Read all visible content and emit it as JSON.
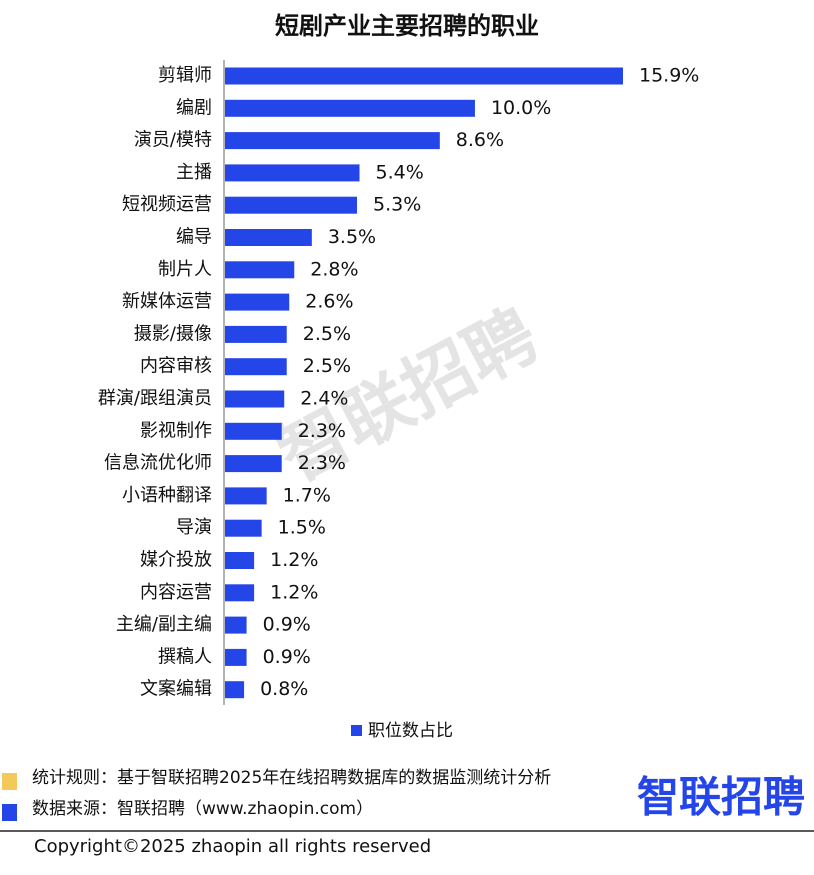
{
  "chart_data": {
    "type": "bar",
    "orientation": "horizontal",
    "title": "短剧产业主要招聘的职业",
    "categories": [
      "剪辑师",
      "编剧",
      "演员/模特",
      "主播",
      "短视频运营",
      "编导",
      "制片人",
      "新媒体运营",
      "摄影/摄像",
      "内容审核",
      "群演/跟组演员",
      "影视制作",
      "信息流优化师",
      "小语种翻译",
      "导演",
      "媒介投放",
      "内容运营",
      "主编/副主编",
      "撰稿人",
      "文案编辑"
    ],
    "series": [
      {
        "name": "职位数占比",
        "color": "#2445e8",
        "values": [
          15.9,
          10.0,
          8.6,
          5.4,
          5.3,
          3.5,
          2.8,
          2.6,
          2.5,
          2.5,
          2.4,
          2.3,
          2.3,
          1.7,
          1.5,
          1.2,
          1.2,
          0.9,
          0.9,
          0.8
        ],
        "value_labels": [
          "15.9%",
          "10.0%",
          "8.6%",
          "5.4%",
          "5.3%",
          "3.5%",
          "2.8%",
          "2.6%",
          "2.5%",
          "2.5%",
          "2.4%",
          "2.3%",
          "2.3%",
          "1.7%",
          "1.5%",
          "1.2%",
          "1.2%",
          "0.9%",
          "0.9%",
          "0.8%"
        ]
      }
    ],
    "watermark": "智联招聘",
    "notes": [
      {
        "text": "统计规则：基于智联招聘2025年在线招聘数据库的数据监测统计分析",
        "color": "#f5c85a"
      },
      {
        "text": "数据来源：智联招聘（www.zhaopin.com）",
        "color": "#2445e8"
      }
    ],
    "logo": "智联招聘",
    "copyright": "Copyright©2025 zhaopin all rights reserved"
  }
}
